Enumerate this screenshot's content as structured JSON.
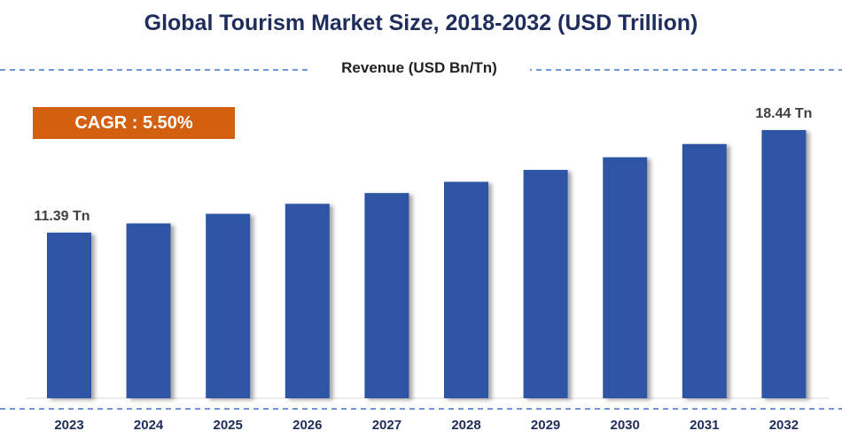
{
  "chart_data": {
    "type": "bar",
    "title": "Global Tourism Market Size, 2018-2032 (USD Trillion)",
    "subtitle": "Revenue (USD Bn/Tn)",
    "annotation": "CAGR : 5.50%",
    "categories": [
      "2023",
      "2024",
      "2025",
      "2026",
      "2027",
      "2028",
      "2029",
      "2030",
      "2031",
      "2032"
    ],
    "values": [
      11.39,
      12.02,
      12.68,
      13.37,
      14.11,
      14.88,
      15.7,
      16.57,
      17.48,
      18.44
    ],
    "data_labels": {
      "0": "11.39 Tn",
      "9": "18.44 Tn"
    },
    "ylim": [
      0,
      20
    ],
    "grid": false,
    "bar_color": "#2f55a4",
    "annotation_color": "#d2600f",
    "divider_color": "#6f96d8"
  }
}
